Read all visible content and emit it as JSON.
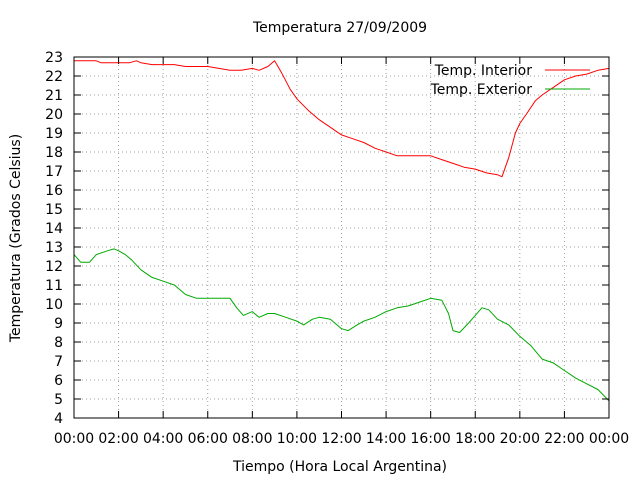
{
  "chart_data": {
    "type": "line",
    "title": "Temperatura 27/09/2009",
    "xlabel": "Tiempo (Hora Local Argentina)",
    "ylabel": "Temperatura (Grados Celsius)",
    "xlim": [
      0,
      24
    ],
    "ylim": [
      4,
      23
    ],
    "x_ticks": [
      "00:00",
      "02:00",
      "04:00",
      "06:00",
      "08:00",
      "10:00",
      "12:00",
      "14:00",
      "16:00",
      "18:00",
      "20:00",
      "22:00",
      "00:00"
    ],
    "y_ticks": [
      "4",
      "5",
      "6",
      "7",
      "8",
      "9",
      "10",
      "11",
      "12",
      "13",
      "14",
      "15",
      "16",
      "17",
      "18",
      "19",
      "20",
      "21",
      "22",
      "23"
    ],
    "grid": true,
    "legend_position": "top-right",
    "series": [
      {
        "name": "Temp. Interior",
        "color": "#ff0000",
        "points": [
          [
            0.0,
            22.8
          ],
          [
            0.5,
            22.8
          ],
          [
            1.0,
            22.8
          ],
          [
            1.2,
            22.7
          ],
          [
            2.0,
            22.7
          ],
          [
            2.5,
            22.7
          ],
          [
            2.8,
            22.8
          ],
          [
            3.0,
            22.7
          ],
          [
            3.5,
            22.6
          ],
          [
            4.0,
            22.6
          ],
          [
            4.5,
            22.6
          ],
          [
            5.0,
            22.5
          ],
          [
            6.0,
            22.5
          ],
          [
            6.5,
            22.4
          ],
          [
            7.0,
            22.3
          ],
          [
            7.5,
            22.3
          ],
          [
            8.0,
            22.4
          ],
          [
            8.3,
            22.3
          ],
          [
            8.7,
            22.5
          ],
          [
            9.0,
            22.8
          ],
          [
            9.3,
            22.2
          ],
          [
            9.7,
            21.3
          ],
          [
            10.0,
            20.8
          ],
          [
            10.5,
            20.2
          ],
          [
            11.0,
            19.7
          ],
          [
            11.5,
            19.3
          ],
          [
            12.0,
            18.9
          ],
          [
            12.5,
            18.7
          ],
          [
            13.0,
            18.5
          ],
          [
            13.5,
            18.2
          ],
          [
            14.0,
            18.0
          ],
          [
            14.5,
            17.8
          ],
          [
            15.0,
            17.8
          ],
          [
            16.0,
            17.8
          ],
          [
            16.5,
            17.6
          ],
          [
            17.0,
            17.4
          ],
          [
            17.5,
            17.2
          ],
          [
            18.0,
            17.1
          ],
          [
            18.5,
            16.9
          ],
          [
            19.0,
            16.8
          ],
          [
            19.2,
            16.7
          ],
          [
            19.5,
            17.7
          ],
          [
            19.8,
            19.0
          ],
          [
            20.0,
            19.5
          ],
          [
            20.3,
            20.0
          ],
          [
            20.7,
            20.7
          ],
          [
            21.0,
            21.0
          ],
          [
            21.5,
            21.4
          ],
          [
            22.0,
            21.8
          ],
          [
            22.5,
            22.0
          ],
          [
            23.0,
            22.1
          ],
          [
            23.5,
            22.3
          ],
          [
            24.0,
            22.4
          ]
        ]
      },
      {
        "name": "Temp. Exterior",
        "color": "#00aa00",
        "points": [
          [
            0.0,
            12.6
          ],
          [
            0.3,
            12.2
          ],
          [
            0.7,
            12.2
          ],
          [
            1.0,
            12.6
          ],
          [
            1.5,
            12.8
          ],
          [
            1.8,
            12.9
          ],
          [
            2.0,
            12.8
          ],
          [
            2.3,
            12.6
          ],
          [
            2.6,
            12.3
          ],
          [
            3.0,
            11.8
          ],
          [
            3.5,
            11.4
          ],
          [
            4.0,
            11.2
          ],
          [
            4.5,
            11.0
          ],
          [
            5.0,
            10.5
          ],
          [
            5.5,
            10.3
          ],
          [
            6.0,
            10.3
          ],
          [
            6.5,
            10.3
          ],
          [
            7.0,
            10.3
          ],
          [
            7.3,
            9.8
          ],
          [
            7.6,
            9.4
          ],
          [
            8.0,
            9.6
          ],
          [
            8.3,
            9.3
          ],
          [
            8.7,
            9.5
          ],
          [
            9.0,
            9.5
          ],
          [
            9.5,
            9.3
          ],
          [
            10.0,
            9.1
          ],
          [
            10.3,
            8.9
          ],
          [
            10.7,
            9.2
          ],
          [
            11.0,
            9.3
          ],
          [
            11.5,
            9.2
          ],
          [
            12.0,
            8.7
          ],
          [
            12.3,
            8.6
          ],
          [
            12.7,
            8.9
          ],
          [
            13.0,
            9.1
          ],
          [
            13.5,
            9.3
          ],
          [
            14.0,
            9.6
          ],
          [
            14.5,
            9.8
          ],
          [
            15.0,
            9.9
          ],
          [
            15.5,
            10.1
          ],
          [
            16.0,
            10.3
          ],
          [
            16.5,
            10.2
          ],
          [
            16.8,
            9.5
          ],
          [
            17.0,
            8.6
          ],
          [
            17.3,
            8.5
          ],
          [
            17.7,
            9.0
          ],
          [
            18.0,
            9.4
          ],
          [
            18.3,
            9.8
          ],
          [
            18.6,
            9.7
          ],
          [
            19.0,
            9.2
          ],
          [
            19.5,
            8.9
          ],
          [
            20.0,
            8.3
          ],
          [
            20.5,
            7.8
          ],
          [
            21.0,
            7.1
          ],
          [
            21.5,
            6.9
          ],
          [
            22.0,
            6.5
          ],
          [
            22.5,
            6.1
          ],
          [
            23.0,
            5.8
          ],
          [
            23.5,
            5.5
          ],
          [
            24.0,
            4.9
          ]
        ]
      }
    ]
  }
}
